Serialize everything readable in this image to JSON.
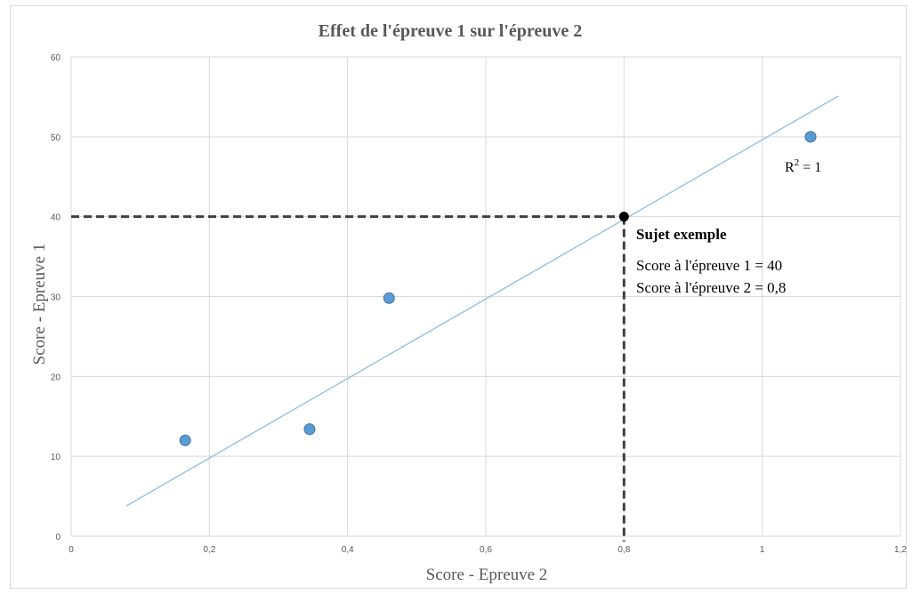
{
  "chart_data": {
    "type": "scatter",
    "title": "Effet de l'épreuve 1 sur l'épreuve 2",
    "xlabel": "Score - Epreuve 2",
    "ylabel": "Score - Epreuve 1",
    "xlim": [
      0,
      1.2
    ],
    "ylim": [
      0,
      60
    ],
    "x_ticks": [
      0,
      0.2,
      0.4,
      0.6,
      0.8,
      1,
      1.2
    ],
    "x_tick_labels": [
      "0",
      "0,2",
      "0,4",
      "0,6",
      "0,8",
      "1",
      "1,2"
    ],
    "y_ticks": [
      0,
      10,
      20,
      30,
      40,
      50,
      60
    ],
    "y_tick_labels": [
      "0",
      "10",
      "20",
      "30",
      "40",
      "50",
      "60"
    ],
    "grid": true,
    "points": [
      {
        "x": 0.165,
        "y": 12
      },
      {
        "x": 0.345,
        "y": 13.4
      },
      {
        "x": 0.46,
        "y": 29.8
      },
      {
        "x": 1.07,
        "y": 50
      }
    ],
    "trendline": {
      "x": [
        0.08,
        1.11
      ],
      "y": [
        3.8,
        55.1
      ]
    },
    "highlight_point": {
      "x": 0.8,
      "y": 40
    },
    "annotations": {
      "r2_base": "R",
      "r2_exp": "2",
      "r2_rest": " = 1",
      "subject_title": "Sujet exemple",
      "subject_line1": "Score à l'épreuve 1 = 40",
      "subject_line2": "Score à l'épreuve 2 = 0,8"
    },
    "colors": {
      "point": "#5b9bd5",
      "point_stroke": "#41719c",
      "trendline": "#9dc3e6",
      "gridline": "#d9d9d9",
      "highlight": "#000000",
      "guide": "#404040"
    }
  }
}
